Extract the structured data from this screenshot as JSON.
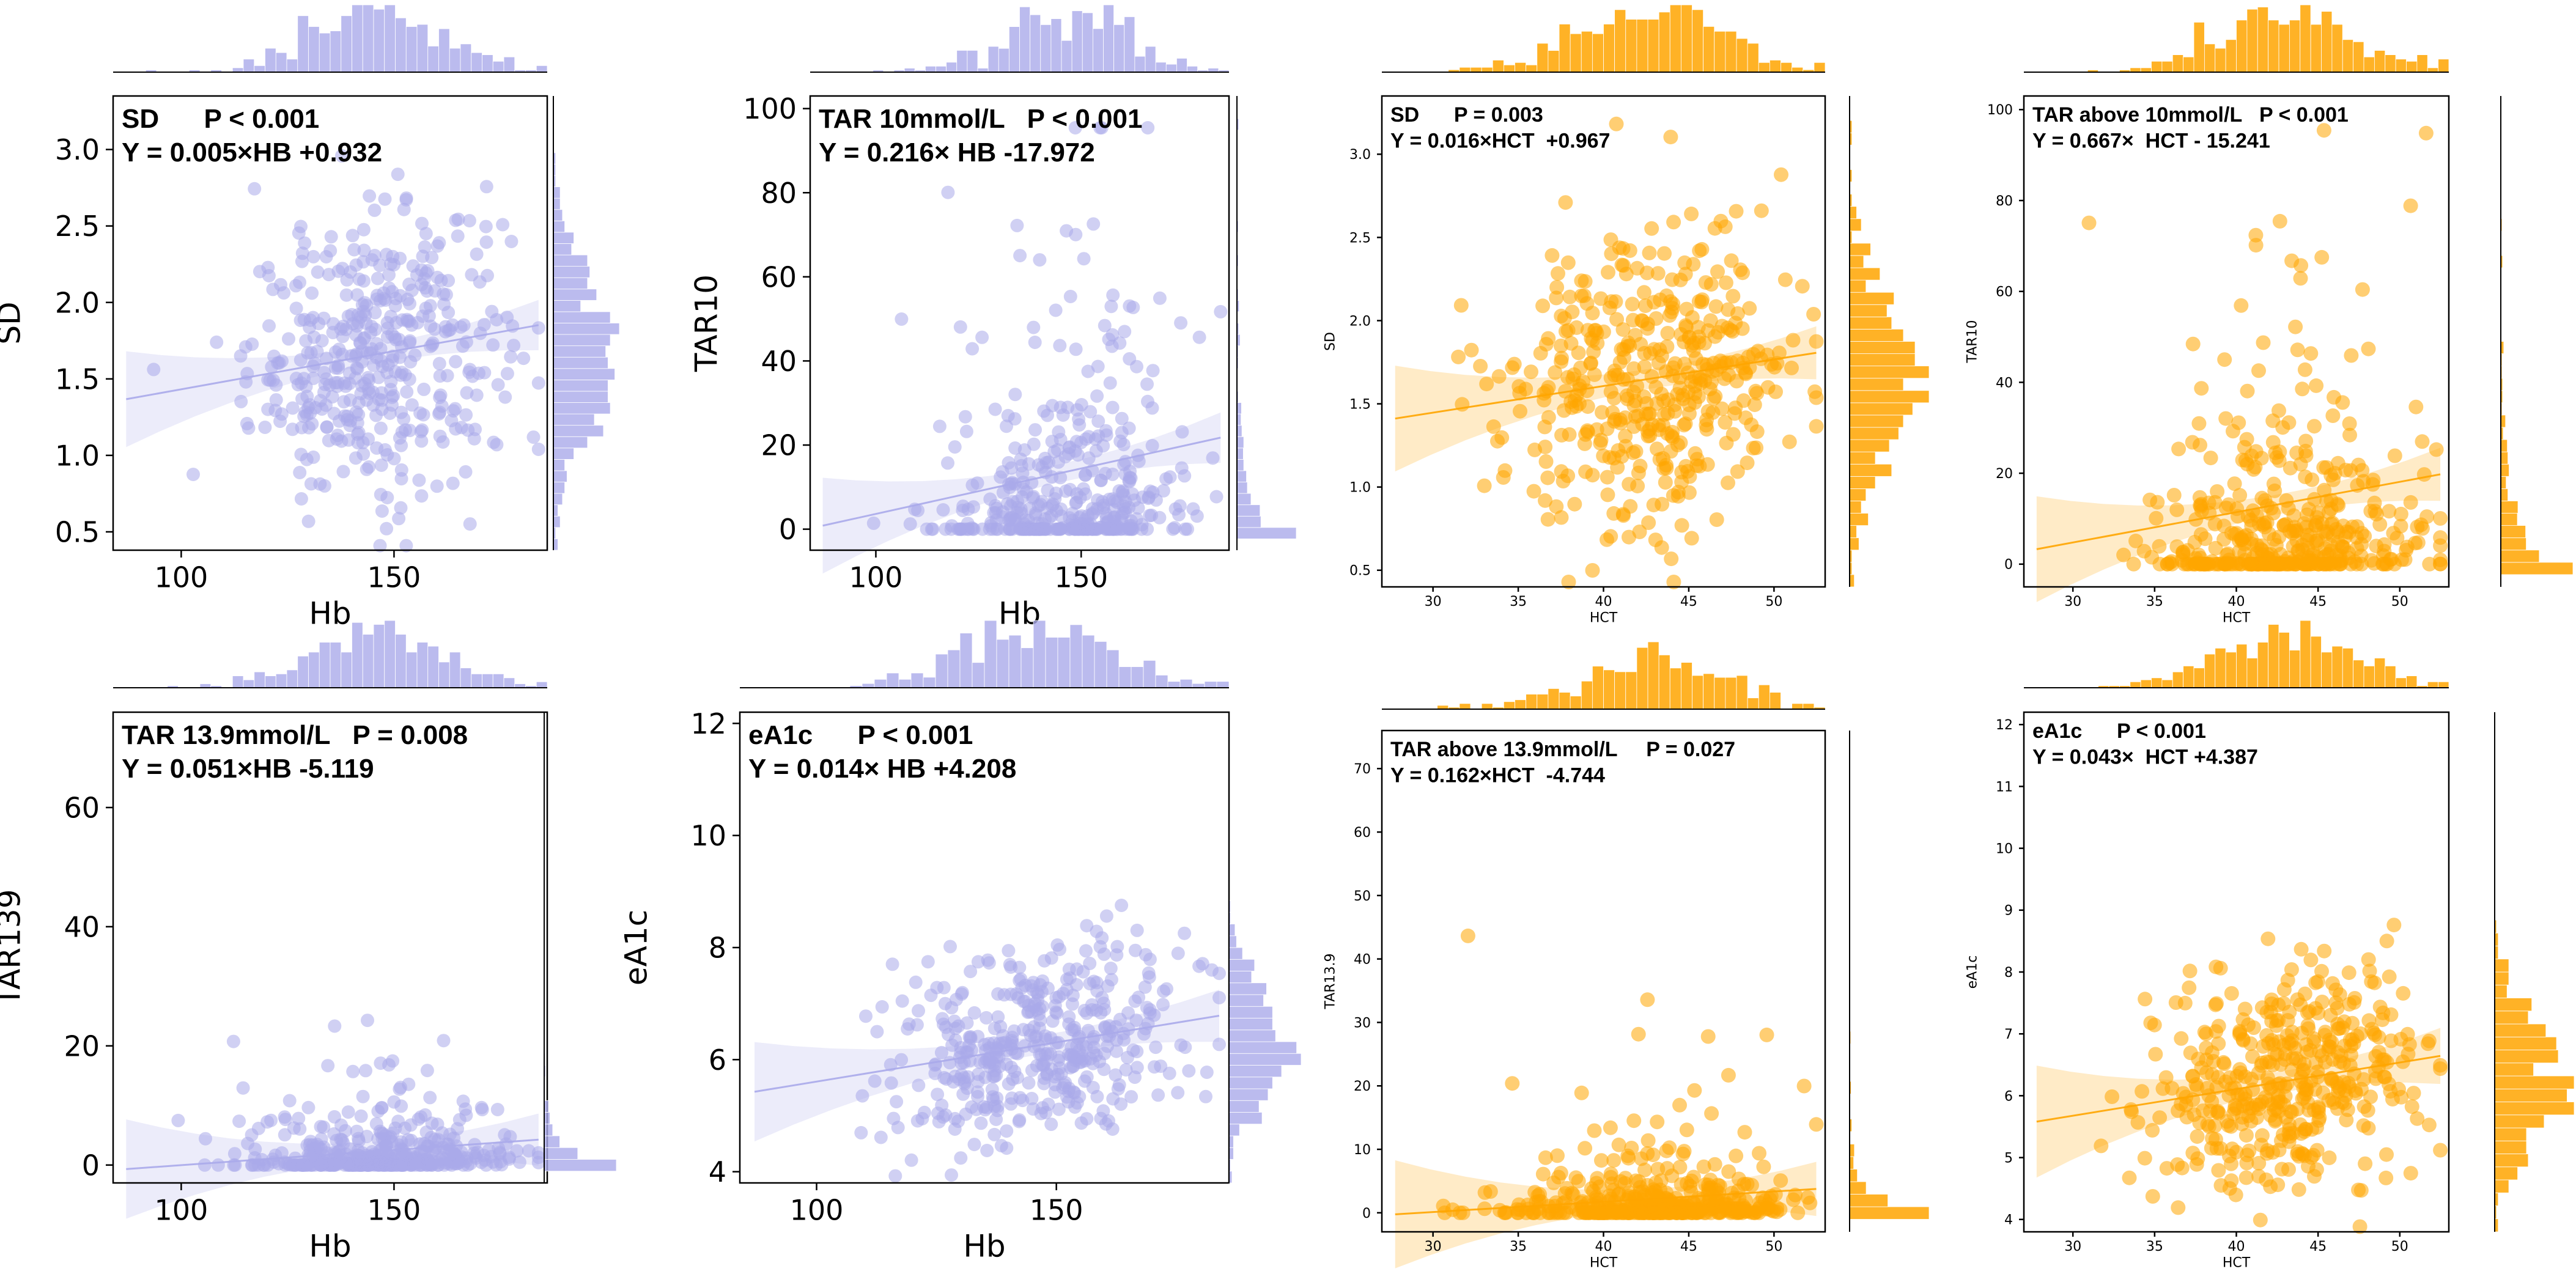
{
  "colors": {
    "purple": "#aaaaea",
    "orange": "#ffa500",
    "axis": "#000000"
  },
  "chart_data": [
    {
      "id": "p1",
      "type": "scatter",
      "color_key": "purple",
      "xlabel": "Hb",
      "ylabel": "SD",
      "xlim": [
        84,
        186
      ],
      "ylim": [
        0.38,
        3.35
      ],
      "xticks": [
        100,
        150
      ],
      "yticks": [
        0.5,
        1.0,
        1.5,
        2.0,
        2.5,
        3.0
      ],
      "ytick_fmt": 1,
      "annotation_line1": "SD      P < 0.001",
      "annotation_line2": "Y = 0.005×HB +0.932",
      "regression": {
        "slope": 0.005,
        "intercept": 0.932
      },
      "dist": {
        "xmean": 146,
        "xsd": 15,
        "ymean": 1.66,
        "ysd": 0.45,
        "skew": false,
        "n": 430
      }
    },
    {
      "id": "p2",
      "type": "scatter",
      "color_key": "purple",
      "xlabel": "Hb",
      "ylabel": "TAR10",
      "xlim": [
        84,
        186
      ],
      "ylim": [
        -5,
        103
      ],
      "xticks": [
        100,
        150
      ],
      "yticks": [
        0,
        20,
        40,
        60,
        80,
        100
      ],
      "ytick_fmt": 0,
      "annotation_line1": "TAR 10mmol/L   P < 0.001",
      "annotation_line2": "Y = 0.216× HB -17.972",
      "regression": {
        "slope": 0.216,
        "intercept": -17.972
      },
      "dist": {
        "xmean": 146,
        "xsd": 15,
        "ymean": 11,
        "ysd": 12,
        "skew": true,
        "n": 430
      }
    },
    {
      "id": "p3",
      "type": "scatter",
      "color_key": "orange",
      "xlabel": "HCT",
      "ylabel": "SD",
      "xlim": [
        27,
        53
      ],
      "ylim": [
        0.4,
        3.35
      ],
      "xticks": [
        30,
        35,
        40,
        45,
        50
      ],
      "yticks": [
        0.5,
        1.0,
        1.5,
        2.0,
        2.5,
        3.0
      ],
      "ytick_fmt": 1,
      "annotation_line1": "SD      P = 0.003",
      "annotation_line2": "Y = 0.016×HCT  +0.967",
      "regression": {
        "slope": 0.016,
        "intercept": 0.967
      },
      "dist": {
        "xmean": 43,
        "xsd": 4.2,
        "ymean": 1.66,
        "ysd": 0.45,
        "skew": false,
        "n": 430
      }
    },
    {
      "id": "p4",
      "type": "scatter",
      "color_key": "orange",
      "xlabel": "HCT",
      "ylabel": "TAR10",
      "xlim": [
        27,
        53
      ],
      "ylim": [
        -5,
        103
      ],
      "xticks": [
        30,
        35,
        40,
        45,
        50
      ],
      "yticks": [
        0,
        20,
        40,
        60,
        80,
        100
      ],
      "ytick_fmt": 0,
      "annotation_line1": "TAR above 10mmol/L   P < 0.001",
      "annotation_line2": "Y = 0.667×  HCT - 15.241",
      "regression": {
        "slope": 0.667,
        "intercept": -15.241
      },
      "dist": {
        "xmean": 43,
        "xsd": 4.2,
        "ymean": 11,
        "ysd": 12,
        "skew": true,
        "n": 430
      }
    },
    {
      "id": "p5",
      "type": "scatter",
      "color_key": "purple",
      "xlabel": "Hb",
      "ylabel": "TAR139",
      "xlim": [
        84,
        186
      ],
      "ylim": [
        -3,
        76
      ],
      "xticks": [
        100,
        150
      ],
      "yticks": [
        0,
        20,
        40,
        60
      ],
      "ytick_fmt": 0,
      "annotation_line1": "TAR 13.9mmol/L   P = 0.008",
      "annotation_line2": "Y = 0.051×HB -5.119",
      "regression": {
        "slope": 0.051,
        "intercept": -5.119
      },
      "dist": {
        "xmean": 146,
        "xsd": 15,
        "ymean": 2.5,
        "ysd": 4,
        "skew": true,
        "n": 430
      }
    },
    {
      "id": "p6",
      "type": "scatter",
      "color_key": "purple",
      "xlabel": "Hb",
      "ylabel": "eA1c",
      "xlim": [
        84,
        186
      ],
      "ylim": [
        3.8,
        12.2
      ],
      "xticks": [
        100,
        150
      ],
      "yticks": [
        4,
        6,
        8,
        10,
        12
      ],
      "ytick_fmt": 0,
      "annotation_line1": "eA1c      P < 0.001",
      "annotation_line2": "Y = 0.014× HB +4.208",
      "regression": {
        "slope": 0.014,
        "intercept": 4.208
      },
      "dist": {
        "xmean": 146,
        "xsd": 15,
        "ymean": 6.25,
        "ysd": 0.9,
        "skew": false,
        "n": 430
      }
    },
    {
      "id": "p7",
      "type": "scatter",
      "color_key": "orange",
      "xlabel": "HCT",
      "ylabel": "TAR13.9",
      "xlim": [
        27,
        53
      ],
      "ylim": [
        -3,
        76
      ],
      "xticks": [
        30,
        35,
        40,
        45,
        50
      ],
      "yticks": [
        0,
        10,
        20,
        30,
        40,
        50,
        60,
        70
      ],
      "ytick_fmt": 0,
      "annotation_line1": "TAR above 13.9mmol/L     P = 0.027",
      "annotation_line2": "Y = 0.162×HCT  -4.744",
      "regression": {
        "slope": 0.162,
        "intercept": -4.744
      },
      "dist": {
        "xmean": 43,
        "xsd": 4.2,
        "ymean": 2.5,
        "ysd": 4,
        "skew": true,
        "n": 430
      }
    },
    {
      "id": "p8",
      "type": "scatter",
      "color_key": "orange",
      "xlabel": "HCT",
      "ylabel": "eA1c",
      "xlim": [
        27,
        53
      ],
      "ylim": [
        3.8,
        12.2
      ],
      "xticks": [
        30,
        35,
        40,
        45,
        50
      ],
      "yticks": [
        4,
        5,
        6,
        7,
        8,
        9,
        10,
        11,
        12
      ],
      "ytick_fmt": 0,
      "annotation_line1": "eA1c      P < 0.001",
      "annotation_line2": "Y = 0.043×  HCT +4.387",
      "regression": {
        "slope": 0.043,
        "intercept": 4.387
      },
      "dist": {
        "xmean": 43,
        "xsd": 4.2,
        "ymean": 6.25,
        "ysd": 0.9,
        "skew": false,
        "n": 430
      }
    }
  ]
}
